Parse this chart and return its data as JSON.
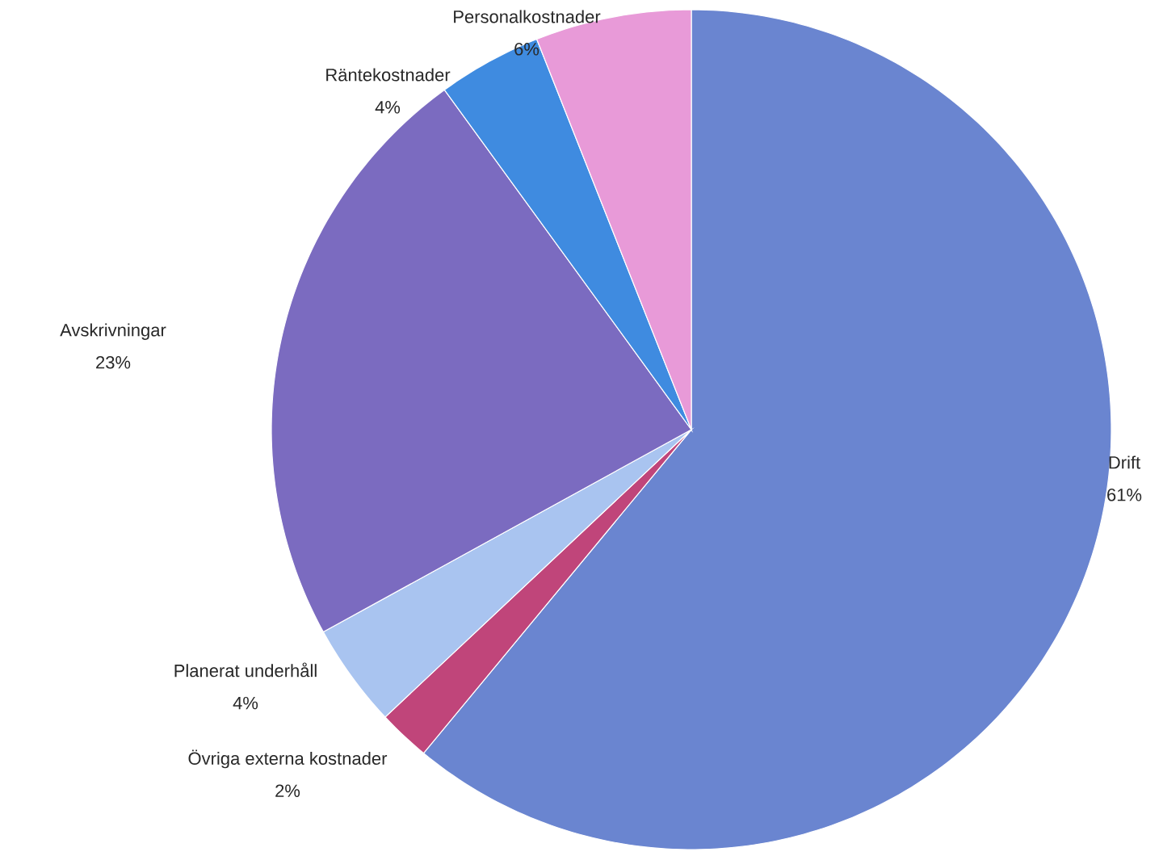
{
  "chart_data": {
    "type": "pie",
    "categories": [
      "Drift",
      "Övriga externa kostnader",
      "Planerat underhåll",
      "Avskrivningar",
      "Räntekostnader",
      "Personalkostnader"
    ],
    "values": [
      61,
      2,
      4,
      23,
      4,
      6
    ],
    "colors": [
      "#6a85d0",
      "#c0457a",
      "#a9c4f0",
      "#7b6bc0",
      "#3f8be0",
      "#e89ad8"
    ],
    "value_labels": [
      "61%",
      "2%",
      "4%",
      "23%",
      "4%",
      "6%"
    ]
  }
}
